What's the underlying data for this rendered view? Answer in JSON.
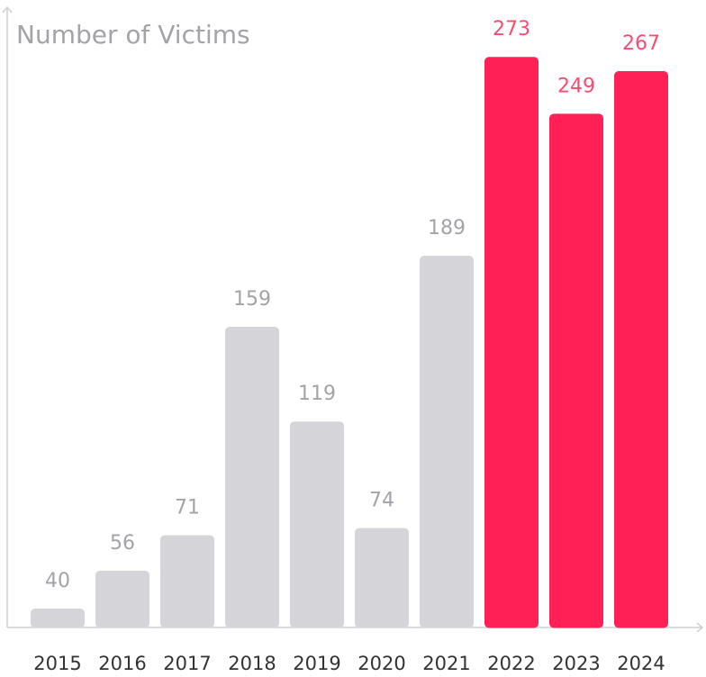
{
  "chart_data": {
    "type": "bar",
    "title": "Number of Victims",
    "categories": [
      "2015",
      "2016",
      "2017",
      "2018",
      "2019",
      "2020",
      "2021",
      "2022",
      "2023",
      "2024"
    ],
    "values": [
      40,
      56,
      71,
      159,
      119,
      74,
      189,
      273,
      249,
      267
    ],
    "colors": [
      "#d5d5d9",
      "#d5d5d9",
      "#d5d5d9",
      "#d5d5d9",
      "#d5d5d9",
      "#d5d5d9",
      "#d5d5d9",
      "#ff2056",
      "#ff2056",
      "#ff2056"
    ],
    "label_colors": [
      "#a3a3a8",
      "#a3a3a8",
      "#a3a3a8",
      "#a3a3a8",
      "#a3a3a8",
      "#a3a3a8",
      "#a3a3a8",
      "#ff4a72",
      "#ff4a72",
      "#ff4a72"
    ],
    "ylim": [
      32,
      294
    ]
  }
}
